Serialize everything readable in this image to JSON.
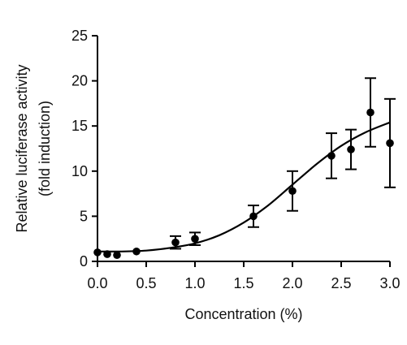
{
  "chart_data": {
    "type": "scatter",
    "title": "",
    "xlabel": "Concentration (%)",
    "ylabel_line1": "Relative luciferase activity",
    "ylabel_line2": "(fold induction)",
    "xlim": [
      0,
      3.0
    ],
    "ylim": [
      0,
      25
    ],
    "x_ticks": [
      0.0,
      0.5,
      1.0,
      1.5,
      2.0,
      2.5,
      3.0
    ],
    "x_tick_labels": [
      "0.0",
      "0.5",
      "1.0",
      "1.5",
      "2.0",
      "2.5",
      "3.0"
    ],
    "y_ticks": [
      0,
      5,
      10,
      15,
      20,
      25
    ],
    "y_tick_labels": [
      "0",
      "5",
      "10",
      "15",
      "20",
      "25"
    ],
    "grid": false,
    "legend": "none",
    "colors": {
      "data": "#000000",
      "axis": "#000000"
    },
    "series": [
      {
        "marker": "circle",
        "points": [
          {
            "x": 0.0,
            "y": 1.0,
            "err_low": 0.2,
            "err_high": 0.2
          },
          {
            "x": 0.1,
            "y": 0.8,
            "err_low": 0.1,
            "err_high": 0.1
          },
          {
            "x": 0.2,
            "y": 0.7,
            "err_low": 0.1,
            "err_high": 0.1
          },
          {
            "x": 0.4,
            "y": 1.1,
            "err_low": 0.2,
            "err_high": 0.2
          },
          {
            "x": 0.8,
            "y": 2.1,
            "err_low": 0.7,
            "err_high": 0.7
          },
          {
            "x": 1.0,
            "y": 2.5,
            "err_low": 0.7,
            "err_high": 0.7
          },
          {
            "x": 1.6,
            "y": 5.0,
            "err_low": 1.2,
            "err_high": 1.2
          },
          {
            "x": 2.0,
            "y": 7.8,
            "err_low": 2.2,
            "err_high": 2.2
          },
          {
            "x": 2.4,
            "y": 11.7,
            "err_low": 2.5,
            "err_high": 2.5
          },
          {
            "x": 2.6,
            "y": 12.4,
            "err_low": 2.2,
            "err_high": 2.2
          },
          {
            "x": 2.8,
            "y": 16.5,
            "err_low": 3.8,
            "err_high": 3.8
          },
          {
            "x": 3.0,
            "y": 13.1,
            "err_low": 4.9,
            "err_high": 4.9
          }
        ]
      }
    ],
    "fit_curve": {
      "type": "sigmoid",
      "x": [
        0.0,
        0.25,
        0.5,
        0.75,
        1.0,
        1.25,
        1.5,
        1.75,
        2.0,
        2.25,
        2.5,
        2.75,
        3.0
      ],
      "y": [
        1.1,
        1.1,
        1.2,
        1.5,
        2.0,
        2.9,
        4.3,
        6.2,
        8.5,
        10.8,
        12.8,
        14.3,
        15.4
      ]
    }
  }
}
